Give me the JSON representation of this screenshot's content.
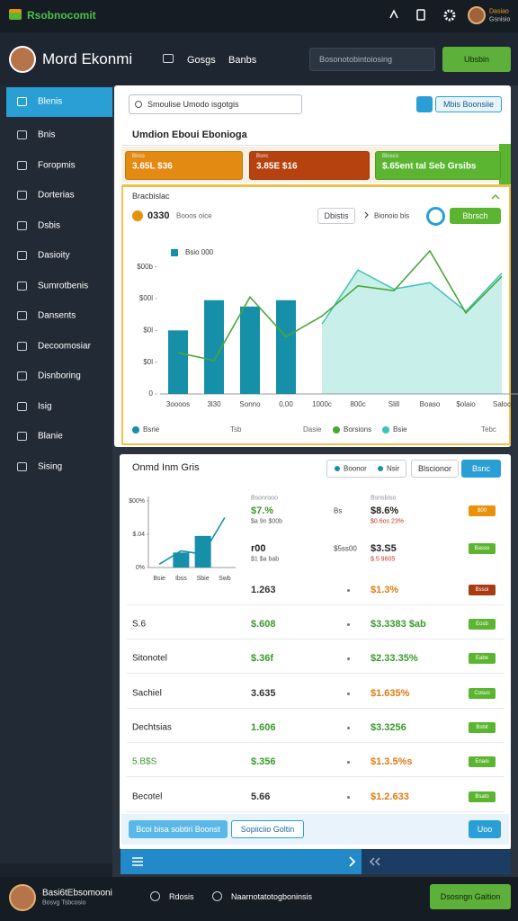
{
  "topbar": {
    "app_name": "Rsobnocomit",
    "user_name": "Dasiao",
    "user_role": "Gsnisio"
  },
  "header": {
    "title": "Mord Ekonmi",
    "nav": [
      "Gosgs",
      "Banbs"
    ],
    "search_placeholder": "Bosonotobintoiosing",
    "button": "Ubsbin"
  },
  "sidebar": {
    "items": [
      "Blenis",
      "Bnis",
      "Foropmis",
      "Dorterias",
      "Dsbis",
      "Dasioity",
      "Sumrotbenis",
      "Dansents",
      "Decoomosiar",
      "Disnboring",
      "Isig",
      "Blanie",
      "Sising"
    ]
  },
  "overview": {
    "search_placeholder": "Smoulise Umodo isgotgis",
    "button": "Mbis Boonsiie",
    "title": "Umdion Eboui Ebonioga",
    "kpis": [
      {
        "label": "Bnco",
        "value": "3.65L $36",
        "color": "#e38a12"
      },
      {
        "label": "Bsnc",
        "value": "3.85E $16",
        "color": "#b5420f"
      },
      {
        "label": "Blnsco",
        "value": "$.65ent tal Seb Grsibs",
        "color": "#5cb531"
      }
    ]
  },
  "main_chart": {
    "title": "Bracbislac",
    "headline": "0330",
    "headline_note": "Booos oice",
    "filter": "Dbistis",
    "range": "Bionoio bis",
    "button": "Bbrsch",
    "legend_title": "Bsio 000",
    "categories": [
      "3oooos",
      "3l30",
      "Sonno",
      "0,00",
      "1000c",
      "800c",
      "Slill",
      "Boaso",
      "$olaio",
      "Saloc"
    ],
    "series": [
      {
        "name": "Bsrie",
        "type": "bar",
        "color": "#1590a8",
        "values": [
          2.0,
          2.95,
          2.75,
          2.95,
          null,
          null,
          null,
          null,
          null,
          null
        ]
      },
      {
        "name": "Borsions",
        "type": "line",
        "color": "#4aa63a",
        "values": [
          1.3,
          1.05,
          3.05,
          1.8,
          2.45,
          3.4,
          3.25,
          4.5,
          2.55,
          3.7
        ]
      },
      {
        "name": "Bsie",
        "type": "area",
        "color": "#3cc4b4",
        "values": [
          null,
          null,
          null,
          null,
          2.2,
          3.9,
          3.3,
          3.5,
          2.6,
          3.8
        ]
      }
    ],
    "ylim": [
      0,
      4.5
    ],
    "yticks": [
      0,
      {
        "value": 1,
        "label": "$0l"
      },
      {
        "value": 2,
        "label": "$0l"
      },
      {
        "value": 3,
        "label": "$00l"
      },
      {
        "value": 4,
        "label": "$00b"
      }
    ],
    "legend_extra": [
      "Tsb",
      "Dasie",
      "Tebc"
    ]
  },
  "mini_chart": {
    "categories": [
      "Bsie",
      "Ibss",
      "Sbie",
      "Swb"
    ],
    "series": [
      {
        "type": "bar",
        "color": "#1590a8",
        "values": [
          null,
          0.45,
          0.95,
          null
        ]
      },
      {
        "type": "line",
        "color": "#1590a8",
        "values": [
          0.1,
          0.5,
          0.4,
          1.5
        ]
      }
    ],
    "ylim": [
      0,
      2
    ],
    "yticks": [
      {
        "value": 0,
        "label": "0%"
      },
      {
        "value": 1,
        "label": "$.04"
      },
      {
        "value": 2,
        "label": "$00%"
      }
    ]
  },
  "table_card": {
    "title": "Onmd Inm Gris",
    "filters": [
      "Boonor",
      "Nsir",
      "Blscionor"
    ],
    "button": "Bsnc",
    "rows": [
      {
        "mid_caption": "Bsonrooo",
        "mid": "$7.%",
        "mid_sub": "$a 9n $00b",
        "mid_color": "#3a9a2c",
        "mark": "Bs",
        "right_caption": "Bsnsbiso",
        "right": "$8.6%",
        "right_sub": "$0.6os 23%",
        "right_color": "#222222",
        "badge": "$00",
        "badge_color": "#e8920c"
      },
      {
        "mid": "r00",
        "mid_sub": "$1 $a bab",
        "mid_color": "#222222",
        "mark": "$5ss00",
        "right": "$3.S5",
        "right_sub": "$.5 9605",
        "right_color": "#222222",
        "badge": "Basso",
        "badge_color": "#5cb531"
      },
      {
        "mid": "1.263",
        "mid_color": "#333333",
        "right": "$1.3%",
        "right_color": "#e07a10",
        "badge": "Bssoi",
        "badge_color": "#a93a12"
      },
      {
        "left": "S.6",
        "left_color": "#222222",
        "mid": "$.608",
        "mid_color": "#3a9a2c",
        "right": "$3.3383 $ab",
        "right_color": "#3a9a2c",
        "badge": "Eosb",
        "badge_color": "#5cb531"
      },
      {
        "left": "Sitonotel",
        "left_color": "#222222",
        "mid": "$.36f",
        "mid_color": "#3a9a2c",
        "right": "$2.33.35%",
        "right_color": "#3a9a2c",
        "badge": "Eabe",
        "badge_color": "#5cb531"
      },
      {
        "left": "Sachiel",
        "left_color": "#222222",
        "mid": "3.635",
        "mid_color": "#333333",
        "right": "$1.635%",
        "right_color": "#e07a10",
        "badge": "Cosuo",
        "badge_color": "#5cb531"
      },
      {
        "left": "Dechtsias",
        "left_color": "#222222",
        "mid": "1.606",
        "mid_color": "#3a9a2c",
        "right": "$3.3256",
        "right_color": "#3a9a2c",
        "badge": "Bsbit",
        "badge_color": "#5cb531"
      },
      {
        "left": "5.B$S",
        "left_color": "#3a9a2c",
        "mid": "$.356",
        "mid_color": "#3a9a2c",
        "right": "$1.3.5%s",
        "right_color": "#e07a10",
        "badge": "Enaoi",
        "badge_color": "#5cb531"
      },
      {
        "left": "Becotel",
        "left_color": "#222222",
        "mid": "5.66",
        "mid_color": "#333333",
        "right": "$1.2.633",
        "right_color": "#e07a10",
        "badge": "Bsato",
        "badge_color": "#5cb531"
      }
    ],
    "footer_buttons": [
      "Bcoi bisa sobtiri Boonst",
      "Sopiiciio Goltin"
    ],
    "footer_right": "Uoo"
  },
  "bottombar": {
    "name": "Basi6tEbsomooni",
    "role": "Bosvg Tsbcosio",
    "links": [
      "Rdosis",
      "Naarnotatotogboninsis"
    ],
    "button": "Dsosngn Gaition"
  }
}
